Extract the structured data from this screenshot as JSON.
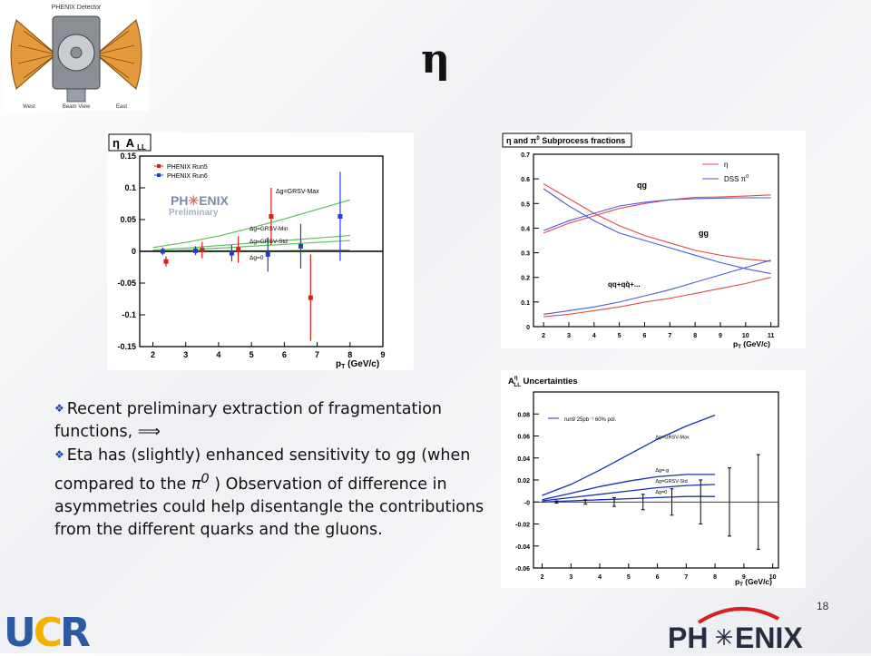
{
  "slide": {
    "title": "η",
    "page_number": "18",
    "bullets": [
      {
        "text": "Recent preliminary extraction of fragmentation functions, ⟹"
      },
      {
        "text_before": "Eta has (slightly) enhanced sensitivity to gg (when compared to the ",
        "pi0": "π",
        "pi0_sup": "0",
        "text_after": " )  Observation of difference in asymmetries could help disentangle the contributions from the different quarks and the gluons."
      }
    ],
    "logos": {
      "ucr": "UCR",
      "phenix_left": "PH",
      "phenix_right": "ENIX"
    }
  },
  "detector": {
    "title": "PHENIX Detector",
    "bottom_labels": [
      "West",
      "Beam View",
      "East"
    ],
    "colors": {
      "arm": "#e49a3c",
      "magnet": "#8a8f96",
      "core": "#c9ccd0"
    }
  },
  "chart_data": [
    {
      "type": "scatter",
      "title": "η A_LL",
      "title_sym": "η",
      "title_main": "A",
      "title_sub": "LL",
      "xlabel": "p_T (GeV/c)",
      "xlabel_main": "p",
      "xlabel_sub": "T",
      "xlabel_rest": " (GeV/c)",
      "xlim": [
        1.6,
        9
      ],
      "ylim": [
        -0.15,
        0.15
      ],
      "xticks": [
        2,
        3,
        4,
        5,
        6,
        7,
        8,
        9
      ],
      "yticks": [
        0.15,
        0.1,
        0.05,
        0,
        -0.05,
        -0.1,
        -0.15
      ],
      "ytick_labels": [
        "0.15",
        "0.1",
        "0.05",
        "0",
        "-0.05",
        "-0.1",
        "-0.15"
      ],
      "legend": [
        "PHENIX Run5",
        "PHENIX Run6"
      ],
      "watermark": [
        "PH",
        "ENIX",
        "Preliminary"
      ],
      "series": [
        {
          "name": "PHENIX Run5",
          "color": "#d11f1f",
          "marker": "circle",
          "points": [
            {
              "x": 2.4,
              "y": -0.016,
              "err": 0.008
            },
            {
              "x": 3.5,
              "y": 0.002,
              "err": 0.013
            },
            {
              "x": 4.6,
              "y": 0.003,
              "err": 0.021
            },
            {
              "x": 5.6,
              "y": 0.055,
              "err": 0.045
            },
            {
              "x": 6.8,
              "y": -0.073,
              "err": 0.068
            }
          ]
        },
        {
          "name": "PHENIX Run6",
          "color": "#1f3fd1",
          "marker": "square",
          "points": [
            {
              "x": 2.3,
              "y": 0.0,
              "err": 0.006
            },
            {
              "x": 3.3,
              "y": 0.001,
              "err": 0.007
            },
            {
              "x": 4.4,
              "y": -0.003,
              "err": 0.013
            },
            {
              "x": 5.5,
              "y": -0.005,
              "err": 0.027
            },
            {
              "x": 6.5,
              "y": 0.008,
              "err": 0.035
            },
            {
              "x": 7.7,
              "y": 0.055,
              "err": 0.07
            }
          ]
        }
      ],
      "theory": [
        {
          "name": "Δg=GRSV-Max",
          "color": "#5cbf5c",
          "x": [
            2,
            3,
            4,
            5,
            6,
            7,
            8
          ],
          "y": [
            0.006,
            0.014,
            0.024,
            0.037,
            0.051,
            0.066,
            0.081
          ]
        },
        {
          "name": "Δg=GRSV-Min",
          "color": "#5cbf5c",
          "x": [
            2,
            3,
            4,
            5,
            6,
            7,
            8
          ],
          "y": [
            0.002,
            0.005,
            0.009,
            0.013,
            0.017,
            0.021,
            0.025
          ]
        },
        {
          "name": "Δg=GRSV-Std",
          "color": "#5cbf5c",
          "x": [
            2,
            3,
            4,
            5,
            6,
            7,
            8
          ],
          "y": [
            0.0,
            0.002,
            0.005,
            0.008,
            0.011,
            0.014,
            0.017
          ]
        },
        {
          "name": "Δg=0",
          "color": "#5cbf5c",
          "x": [
            2,
            3,
            4,
            5,
            6,
            7,
            8
          ],
          "y": [
            0.0,
            0.0,
            0.001,
            0.001,
            0.001,
            0.002,
            0.002
          ]
        }
      ],
      "theory_labels": [
        "Δg=GRSV-Max",
        "Δg=GRSV-Min",
        "Δg=GRSV-Std",
        "Δg=0"
      ],
      "grid": false
    },
    {
      "type": "line",
      "title": "η and π0 Subprocess fractions",
      "title_parts": [
        "η and π",
        "0",
        " Subprocess fractions"
      ],
      "xlabel": "p_T (GeV/c)",
      "xlabel_main": "p",
      "xlabel_sub": "T",
      "xlabel_rest": " (GeV/c)",
      "xlim": [
        1.6,
        11.3
      ],
      "ylim": [
        0,
        0.7
      ],
      "xticks": [
        2,
        3,
        4,
        5,
        6,
        7,
        8,
        9,
        10,
        11
      ],
      "yticks": [
        0,
        0.1,
        0.2,
        0.3,
        0.4,
        0.5,
        0.6,
        0.7
      ],
      "ytick_labels": [
        "0",
        "0.1",
        "0.2",
        "0.3",
        "0.4",
        "0.5",
        "0.6",
        "0.7"
      ],
      "legend": [
        "η",
        "DSS π0"
      ],
      "legend_parts": [
        [
          "η",
          ""
        ],
        [
          "DSS π",
          "0"
        ]
      ],
      "curve_labels": [
        "qg",
        "gg",
        "qq+qq̄+..."
      ],
      "series": [
        {
          "name": "η",
          "color": "#e04a4a",
          "group": "qg",
          "x": [
            2,
            3,
            4,
            5,
            6,
            7,
            8,
            9,
            10,
            11
          ],
          "y": [
            0.38,
            0.42,
            0.45,
            0.48,
            0.5,
            0.515,
            0.525,
            0.527,
            0.53,
            0.535
          ]
        },
        {
          "name": "η",
          "color": "#e04a4a",
          "group": "gg",
          "x": [
            2,
            3,
            4,
            5,
            6,
            7,
            8,
            9,
            10,
            11
          ],
          "y": [
            0.58,
            0.52,
            0.46,
            0.41,
            0.37,
            0.34,
            0.31,
            0.29,
            0.275,
            0.265
          ]
        },
        {
          "name": "η",
          "color": "#e04a4a",
          "group": "qq",
          "x": [
            2,
            3,
            4,
            5,
            6,
            7,
            8,
            9,
            10,
            11
          ],
          "y": [
            0.04,
            0.05,
            0.065,
            0.08,
            0.1,
            0.115,
            0.135,
            0.155,
            0.175,
            0.2
          ]
        },
        {
          "name": "DSS π0",
          "color": "#4a5ae0",
          "group": "qg",
          "x": [
            2,
            3,
            4,
            5,
            6,
            7,
            8,
            9,
            10,
            11
          ],
          "y": [
            0.39,
            0.43,
            0.46,
            0.49,
            0.505,
            0.515,
            0.52,
            0.522,
            0.523,
            0.523
          ]
        },
        {
          "name": "DSS π0",
          "color": "#4a5ae0",
          "group": "gg",
          "x": [
            2,
            3,
            4,
            5,
            6,
            7,
            8,
            9,
            10,
            11
          ],
          "y": [
            0.56,
            0.49,
            0.43,
            0.38,
            0.35,
            0.32,
            0.29,
            0.26,
            0.235,
            0.215
          ]
        },
        {
          "name": "DSS π0",
          "color": "#4a5ae0",
          "group": "qq",
          "x": [
            2,
            3,
            4,
            5,
            6,
            7,
            8,
            9,
            10,
            11
          ],
          "y": [
            0.05,
            0.065,
            0.08,
            0.1,
            0.125,
            0.15,
            0.18,
            0.21,
            0.24,
            0.27
          ]
        }
      ],
      "grid": false
    },
    {
      "type": "line",
      "title": "A_LL^η Uncertainties",
      "title_main": "A",
      "title_sup": "η",
      "title_sub": "LL",
      "title_rest": " Uncertainties",
      "xlabel": "p_T (GeV/c)",
      "xlabel_main": "p",
      "xlabel_sub": "T",
      "xlabel_rest": " (GeV/c)",
      "xlim": [
        1.7,
        10.2
      ],
      "ylim": [
        -0.06,
        0.1
      ],
      "xticks": [
        2,
        3,
        4,
        5,
        6,
        7,
        8,
        9,
        10
      ],
      "yticks": [
        0.08,
        0.06,
        0.04,
        0.02,
        0,
        -0.02,
        -0.04,
        -0.06
      ],
      "ytick_labels": [
        "0.08",
        "0.06",
        "0.04",
        "0.02",
        "-0",
        "-0.02",
        "-0.04",
        "-0.06"
      ],
      "legend": [
        "run9 25pb⁻¹ 60% pol."
      ],
      "series": [
        {
          "name": "Δg=GRSV-Max",
          "color": "#1a2fb0",
          "x": [
            2,
            3,
            4,
            5,
            6,
            7,
            8
          ],
          "y": [
            0.006,
            0.016,
            0.029,
            0.043,
            0.057,
            0.069,
            0.079
          ]
        },
        {
          "name": "Δg=-g",
          "color": "#1a2fb0",
          "x": [
            2,
            3,
            4,
            5,
            6,
            7,
            8
          ],
          "y": [
            0.002,
            0.008,
            0.014,
            0.019,
            0.023,
            0.025,
            0.025
          ]
        },
        {
          "name": "Δg=GRSV-Std",
          "color": "#1a2fb0",
          "x": [
            2,
            3,
            4,
            5,
            6,
            7,
            8
          ],
          "y": [
            0.001,
            0.004,
            0.007,
            0.01,
            0.013,
            0.015,
            0.016
          ]
        },
        {
          "name": "Δg=0",
          "color": "#1a2fb0",
          "x": [
            2,
            3,
            4,
            5,
            6,
            7,
            8
          ],
          "y": [
            0.0,
            0.001,
            0.002,
            0.003,
            0.004,
            0.005,
            0.005
          ]
        }
      ],
      "errorbars": [
        {
          "x": 2.5,
          "err": 0.001
        },
        {
          "x": 3.5,
          "err": 0.002
        },
        {
          "x": 4.5,
          "err": 0.004
        },
        {
          "x": 5.5,
          "err": 0.007
        },
        {
          "x": 6.5,
          "err": 0.012
        },
        {
          "x": 7.5,
          "err": 0.02
        },
        {
          "x": 8.5,
          "err": 0.031
        },
        {
          "x": 9.5,
          "err": 0.043
        }
      ],
      "grid": false
    }
  ]
}
